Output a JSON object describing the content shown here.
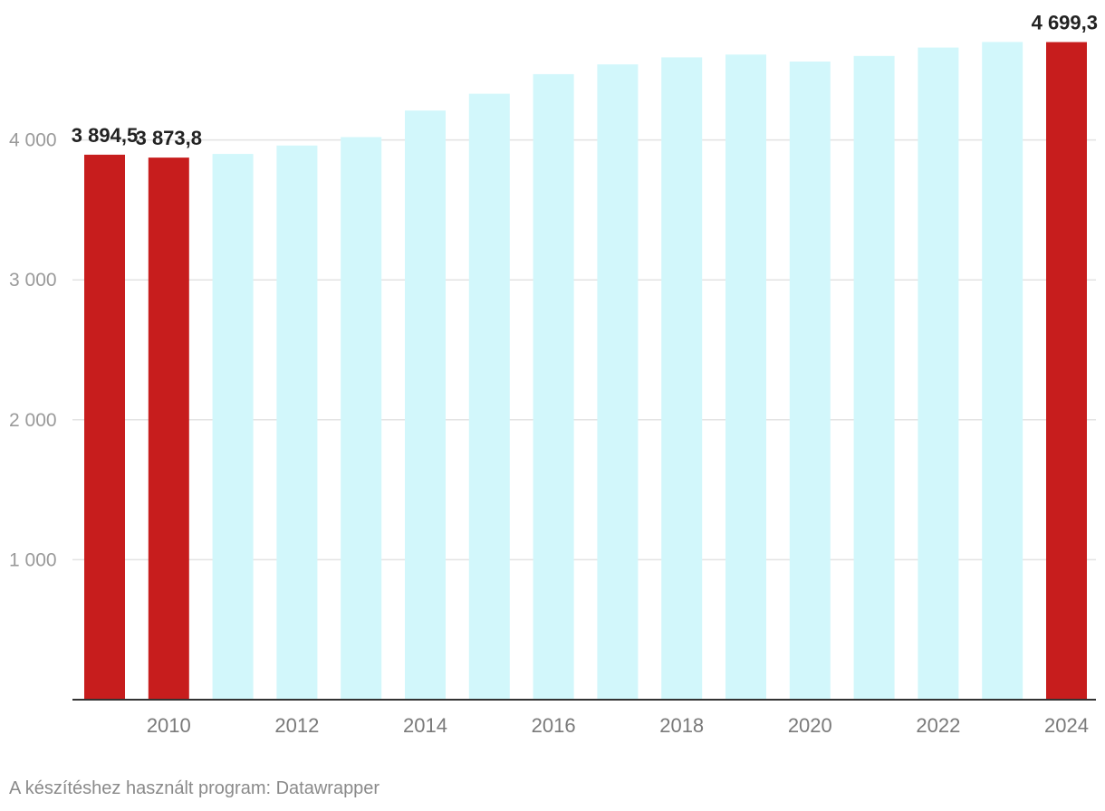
{
  "chart_data": {
    "type": "bar",
    "categories": [
      "2009",
      "2010",
      "2011",
      "2012",
      "2013",
      "2014",
      "2015",
      "2016",
      "2017",
      "2018",
      "2019",
      "2020",
      "2021",
      "2022",
      "2023",
      "2024"
    ],
    "values": [
      3894.5,
      3873.8,
      3900,
      3960,
      4020,
      4210,
      4330,
      4470,
      4540,
      4590,
      4610,
      4560,
      4600,
      4660,
      4700,
      4699.3
    ],
    "highlighted": [
      "2009",
      "2010",
      "2024"
    ],
    "data_labels": {
      "2009": "3 894,5",
      "2010": "3 873,8",
      "2024": "4 699,3"
    },
    "y_ticks": [
      {
        "value": 1000,
        "label": "1 000"
      },
      {
        "value": 2000,
        "label": "2 000"
      },
      {
        "value": 3000,
        "label": "3 000"
      },
      {
        "value": 4000,
        "label": "4 000"
      }
    ],
    "x_tick_labels": [
      "2010",
      "2012",
      "2014",
      "2016",
      "2018",
      "2020",
      "2022",
      "2024"
    ],
    "ylim": [
      0,
      4700
    ],
    "grid": true,
    "title": "",
    "xlabel": "",
    "ylabel": "",
    "colors": {
      "highlight": "#c71d1d",
      "default": "#d2f7fb",
      "grid": "#e3e3e3",
      "baseline": "#333333"
    }
  },
  "footer": {
    "credit": "A készítéshez használt program: Datawrapper"
  }
}
